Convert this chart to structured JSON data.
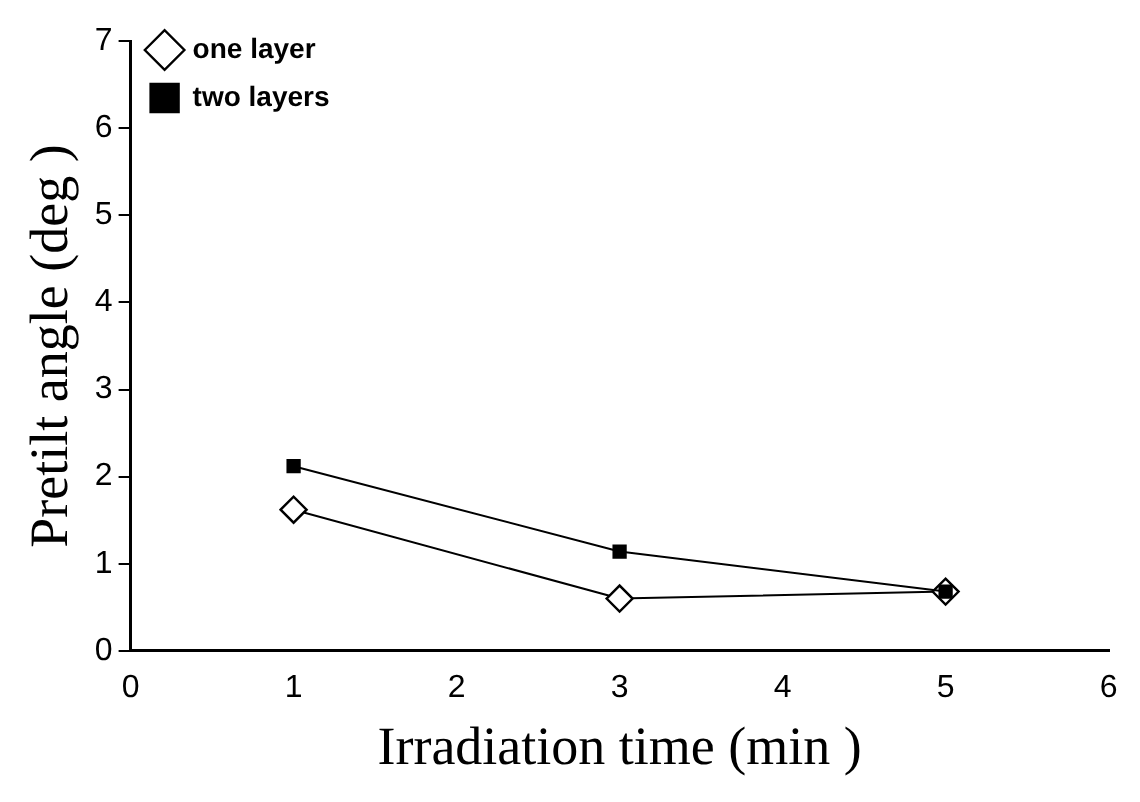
{
  "chart_data": {
    "type": "line",
    "xlabel": "Irradiation time (min )",
    "ylabel": "Pretilt angle (deg )",
    "x": [
      1,
      3,
      5
    ],
    "series": [
      {
        "name": "one layer",
        "color": "#000000",
        "marker": "diamond",
        "values": [
          1.62,
          0.6,
          0.68
        ]
      },
      {
        "name": "two layers",
        "color": "#000000",
        "marker": "square",
        "values": [
          2.12,
          1.14,
          0.68
        ]
      }
    ],
    "xlim": [
      0,
      6
    ],
    "xticks": [
      0,
      1,
      2,
      3,
      4,
      5,
      6
    ],
    "ylim": [
      0,
      7
    ],
    "yticks": [
      0,
      1,
      2,
      3,
      4,
      5,
      6,
      7
    ],
    "grid": false,
    "legend": "top left",
    "line_style": "solid"
  }
}
